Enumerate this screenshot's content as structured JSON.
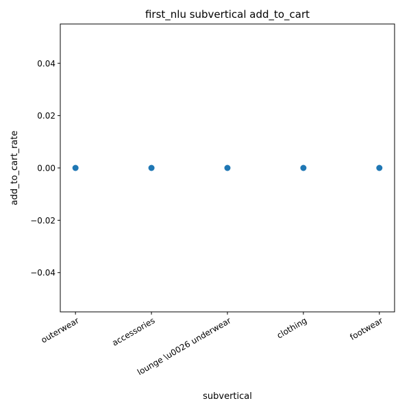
{
  "chart_data": {
    "type": "scatter",
    "title": "first_nlu subvertical add_to_cart",
    "xlabel": "subvertical",
    "ylabel": "add_to_cart_rate",
    "categories": [
      "outerwear",
      "accessories",
      "lounge \\u0026 underwear",
      "clothing",
      "footwear"
    ],
    "series": [
      {
        "values": [
          0.0,
          0.0,
          0.0,
          0.0,
          0.0
        ]
      }
    ],
    "ylim": [
      -0.055,
      0.055
    ],
    "yticks": [
      -0.04,
      -0.02,
      0.0,
      0.02,
      0.04
    ],
    "ytick_labels": [
      "−0.04",
      "−0.02",
      "0.00",
      "0.02",
      "0.04"
    ],
    "xtick_rotation": "30 degrees",
    "grid": false,
    "legend": "none",
    "colors": {
      "point": "#1f77b4",
      "axes": "#000000",
      "background": "#ffffff"
    }
  }
}
